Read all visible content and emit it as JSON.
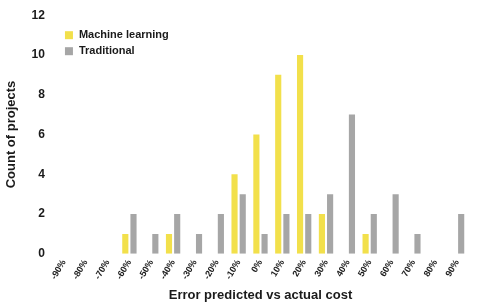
{
  "chart_data": {
    "type": "bar",
    "x_label": "Error predicted vs actual cost",
    "y_label": "Count of projects",
    "categories": [
      "-90%",
      "-80%",
      "-70%",
      "-60%",
      "-50%",
      "-40%",
      "-30%",
      "-20%",
      "-10%",
      "0%",
      "10%",
      "20%",
      "30%",
      "40%",
      "50%",
      "60%",
      "70%",
      "80%",
      "90%"
    ],
    "series": [
      {
        "name": "Machine learning",
        "color": "#f2e04b",
        "values": [
          0,
          0,
          0,
          1,
          0,
          1,
          0,
          0,
          4,
          6,
          9,
          10,
          2,
          0,
          1,
          0,
          0,
          0,
          0
        ]
      },
      {
        "name": "Traditional",
        "color": "#a6a6a6",
        "values": [
          0,
          0,
          0,
          2,
          1,
          2,
          1,
          2,
          3,
          1,
          2,
          2,
          3,
          7,
          2,
          3,
          1,
          0,
          2
        ]
      }
    ],
    "ylim": [
      0,
      12
    ],
    "yticks": [
      0,
      2,
      4,
      6,
      8,
      10,
      12
    ],
    "grid": false,
    "legend": "top-left"
  }
}
